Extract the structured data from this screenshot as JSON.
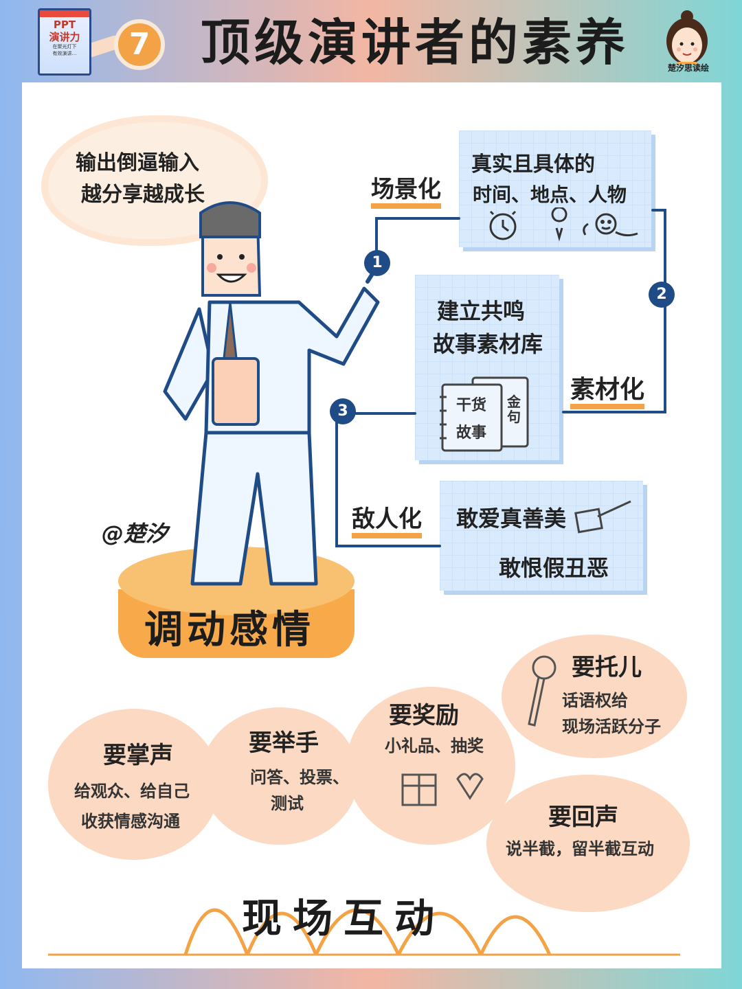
{
  "header": {
    "title": "顶级演讲者的素养",
    "number": "7",
    "book_title": "PPT\n演讲力",
    "book_subtitle": "在聚光灯下\n有效演讲…",
    "avatar_caption": "楚汐思读绘"
  },
  "cloud": {
    "line1": "输出倒逼输入",
    "line2": "越分享越成长"
  },
  "signature": "@楚汐",
  "emotion": {
    "title": "调动感情",
    "items": [
      {
        "number": "1",
        "label": "场景化",
        "card_line1": "真实且具体的",
        "card_line2": "时间、地点、人物"
      },
      {
        "number": "2",
        "label": "素材化",
        "card_line1": "建立共鸣",
        "card_line2": "故事素材库",
        "notebook_text1": "干货",
        "notebook_text2": "故事",
        "notebook_text3": "金句"
      },
      {
        "number": "3",
        "label": "敌人化",
        "card_line1": "敢爱真善美",
        "card_line2": "敢恨假丑恶"
      }
    ]
  },
  "interaction": {
    "title": "现场互动",
    "bubbles": [
      {
        "title": "要掌声",
        "line1": "给观众、给自己",
        "line2": "收获情感沟通"
      },
      {
        "title": "要举手",
        "line1": "问答、投票、",
        "line2": "测试"
      },
      {
        "title": "要奖励",
        "line1": "小礼品、抽奖",
        "line2": ""
      },
      {
        "title": "要托儿",
        "line1": "话语权给",
        "line2": "现场活跃分子"
      },
      {
        "title": "要回声",
        "line1": "说半截，留半截互动",
        "line2": ""
      }
    ]
  },
  "colors": {
    "accent_orange": "#f4a246",
    "navy": "#1f4c86",
    "card_blue": "#d9eafc",
    "peach": "#fbd9c3"
  }
}
